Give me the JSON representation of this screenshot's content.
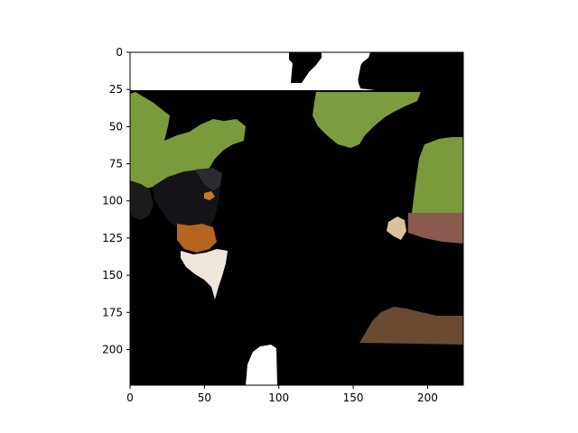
{
  "figure": {
    "image": {
      "description_colors": {
        "mask": "#000000",
        "grass": "#7d9a3e",
        "grass_dark": "#5f7a2c",
        "background_white": "#ffffff",
        "dog_black": "#141414",
        "dog_tan": "#b5651d",
        "dog_white": "#efe7dc",
        "path": "#8a5a4e",
        "leaves": "#6b4a32"
      }
    },
    "x_axis": {
      "ticks": [
        0,
        50,
        100,
        150,
        200
      ],
      "range": [
        0,
        224
      ]
    },
    "y_axis": {
      "ticks": [
        0,
        25,
        50,
        75,
        100,
        125,
        150,
        175,
        200
      ],
      "range": [
        0,
        224
      ],
      "inverted": true
    }
  }
}
